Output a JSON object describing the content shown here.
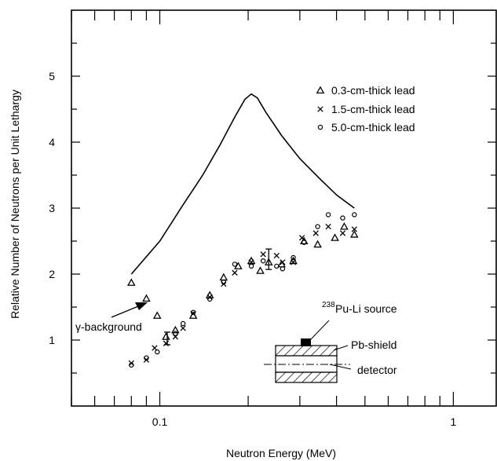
{
  "chart_data": {
    "type": "scatter",
    "title": "",
    "xlabel": "Neutron Energy (MeV)",
    "ylabel": "Relative Number of Neutrons per Unit Lethargy",
    "xscale": "log",
    "xlim": [
      0.05,
      1.4
    ],
    "ylim": [
      0,
      6
    ],
    "grid": false,
    "legend_placement": "top-right",
    "x_tick_labels": [
      {
        "value": 0.1,
        "label": "0.1"
      },
      {
        "value": 1,
        "label": "1"
      }
    ],
    "y_tick_labels": [
      {
        "value": 1,
        "label": "1"
      },
      {
        "value": 2,
        "label": "2"
      },
      {
        "value": 3,
        "label": "3"
      },
      {
        "value": 4,
        "label": "4"
      },
      {
        "value": 5,
        "label": "5"
      }
    ],
    "series": [
      {
        "name": "0.3-cm-thick lead",
        "marker": "triangle",
        "points": [
          [
            0.08,
            1.87
          ],
          [
            0.09,
            1.63
          ],
          [
            0.098,
            1.37
          ],
          [
            0.105,
            1.05
          ],
          [
            0.113,
            1.15
          ],
          [
            0.13,
            1.37
          ],
          [
            0.148,
            1.68
          ],
          [
            0.165,
            1.95
          ],
          [
            0.185,
            2.12
          ],
          [
            0.205,
            2.2
          ],
          [
            0.22,
            2.05
          ],
          [
            0.235,
            2.18
          ],
          [
            0.26,
            2.15
          ],
          [
            0.285,
            2.2
          ],
          [
            0.31,
            2.5
          ],
          [
            0.345,
            2.45
          ],
          [
            0.395,
            2.55
          ],
          [
            0.425,
            2.72
          ],
          [
            0.46,
            2.6
          ]
        ]
      },
      {
        "name": "1.5-cm-thick lead",
        "marker": "x",
        "points": [
          [
            0.08,
            0.65
          ],
          [
            0.09,
            0.7
          ],
          [
            0.096,
            0.88
          ],
          [
            0.105,
            0.95
          ],
          [
            0.113,
            1.05
          ],
          [
            0.12,
            1.18
          ],
          [
            0.13,
            1.4
          ],
          [
            0.148,
            1.65
          ],
          [
            0.165,
            1.85
          ],
          [
            0.18,
            2.02
          ],
          [
            0.205,
            2.18
          ],
          [
            0.225,
            2.3
          ],
          [
            0.25,
            2.28
          ],
          [
            0.262,
            2.18
          ],
          [
            0.285,
            2.18
          ],
          [
            0.305,
            2.55
          ],
          [
            0.34,
            2.62
          ],
          [
            0.375,
            2.72
          ],
          [
            0.42,
            2.62
          ],
          [
            0.46,
            2.68
          ]
        ]
      },
      {
        "name": "5.0-cm-thick lead",
        "marker": "circle",
        "points": [
          [
            0.08,
            0.62
          ],
          [
            0.09,
            0.73
          ],
          [
            0.098,
            0.82
          ],
          [
            0.113,
            1.1
          ],
          [
            0.12,
            1.25
          ],
          [
            0.13,
            1.42
          ],
          [
            0.148,
            1.62
          ],
          [
            0.165,
            1.88
          ],
          [
            0.18,
            2.15
          ],
          [
            0.205,
            2.12
          ],
          [
            0.225,
            2.2
          ],
          [
            0.25,
            2.12
          ],
          [
            0.262,
            2.08
          ],
          [
            0.285,
            2.25
          ],
          [
            0.31,
            2.48
          ],
          [
            0.345,
            2.72
          ],
          [
            0.375,
            2.9
          ],
          [
            0.42,
            2.85
          ],
          [
            0.46,
            2.9
          ]
        ]
      },
      {
        "name": "",
        "type": "line",
        "points": [
          [
            0.08,
            2.0
          ],
          [
            0.1,
            2.5
          ],
          [
            0.12,
            3.05
          ],
          [
            0.14,
            3.5
          ],
          [
            0.16,
            3.95
          ],
          [
            0.18,
            4.38
          ],
          [
            0.195,
            4.65
          ],
          [
            0.205,
            4.73
          ],
          [
            0.215,
            4.67
          ],
          [
            0.23,
            4.45
          ],
          [
            0.26,
            4.1
          ],
          [
            0.3,
            3.75
          ],
          [
            0.35,
            3.45
          ],
          [
            0.4,
            3.2
          ],
          [
            0.46,
            3.0
          ]
        ]
      }
    ],
    "error_bars": [
      {
        "x": 0.106,
        "ylow": 0.93,
        "yhigh": 1.12
      },
      {
        "x": 0.235,
        "ylow": 2.07,
        "yhigh": 2.38
      }
    ],
    "annotations": {
      "gamma_background": "γ-background",
      "source_label": "Pu-Li source",
      "source_superscript": "238",
      "shield_label": "Pb-shield",
      "detector_label": "detector"
    }
  }
}
